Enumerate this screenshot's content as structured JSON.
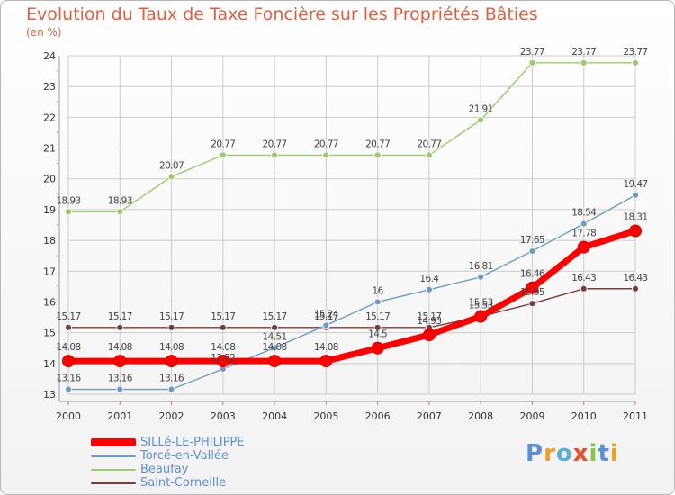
{
  "title": "Evolution du Taux de Taxe Foncière sur les Propriétés Bâties",
  "subtitle": "(en %)",
  "logo_text": "Proxiti",
  "colors": {
    "title": "#e0603e",
    "legend_text": "#5b8fd4",
    "grid": "#cccccc",
    "axis": "#999999",
    "sille": "#ff0000",
    "torce": "#6a9cc9",
    "beaufay": "#99cc66",
    "saint": "#7a3b3b"
  },
  "chart_data": {
    "type": "line",
    "title": "Evolution du Taux de Taxe Foncière sur les Propriétés Bâties",
    "ylabel": "(en %)",
    "xlabel": "",
    "ylim": [
      13,
      24
    ],
    "yticks": [
      "13",
      "14",
      "15",
      "16",
      "17",
      "18",
      "19",
      "20",
      "21",
      "22",
      "23",
      "24"
    ],
    "categories": [
      "2000",
      "2001",
      "2002",
      "2003",
      "2004",
      "2005",
      "2006",
      "2007",
      "2008",
      "2009",
      "2010",
      "2011"
    ],
    "grid": true,
    "legend_position": "bottom-left",
    "series": [
      {
        "name": "SILLé-LE-PHILIPPE",
        "color": "#ff0000",
        "values": [
          14.08,
          14.08,
          14.08,
          14.08,
          14.08,
          14.08,
          14.5,
          14.93,
          15.53,
          16.46,
          17.78,
          18.31
        ],
        "labels": [
          "14.08",
          "14.08",
          "14.08",
          "14.08",
          "14.08",
          "14.08",
          "14.5",
          "14.93",
          "15.53",
          "16.46",
          "17.78",
          "18.31"
        ]
      },
      {
        "name": "Torcé-en-Vallée",
        "color": "#6a9cc9",
        "values": [
          13.16,
          13.16,
          13.16,
          13.82,
          14.51,
          15.24,
          16,
          16.4,
          16.81,
          17.65,
          18.54,
          19.47
        ],
        "labels": [
          "13.16",
          "13.16",
          "13.16",
          "13.82",
          "14.51",
          "15.24",
          "16",
          "16.4",
          "16.81",
          "17.65",
          "18.54",
          "19.47"
        ]
      },
      {
        "name": "Beaufay",
        "color": "#99cc66",
        "values": [
          18.93,
          18.93,
          20.07,
          20.77,
          20.77,
          20.77,
          20.77,
          20.77,
          21.91,
          23.77,
          23.77,
          23.77
        ],
        "labels": [
          "18.93",
          "18.93",
          "20.07",
          "20.77",
          "20.77",
          "20.77",
          "20.77",
          "20.77",
          "21.91",
          "23.77",
          "23.77",
          "23.77"
        ]
      },
      {
        "name": "Saint-Corneille",
        "color": "#7a3b3b",
        "values": [
          15.17,
          15.17,
          15.17,
          15.17,
          15.17,
          15.17,
          15.17,
          15.17,
          15.53,
          15.95,
          16.43,
          16.43
        ],
        "labels": [
          "15.17",
          "15.17",
          "15.17",
          "15.17",
          "15.17",
          "15.17",
          "15.17",
          "15.17",
          "15.53",
          "15.95",
          "16.43",
          "16.43"
        ]
      }
    ]
  }
}
